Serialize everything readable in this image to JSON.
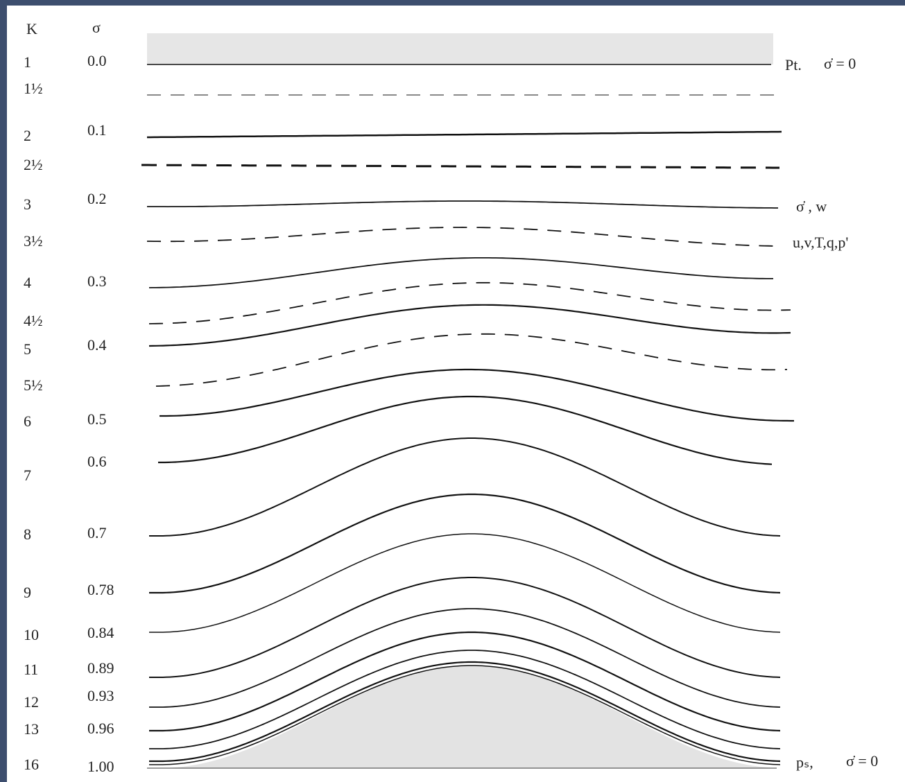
{
  "header": {
    "k": "K",
    "sigma": "σ"
  },
  "k_labels": [
    "1",
    "1½",
    "2",
    "2½",
    "3",
    "3½",
    "4",
    "4½",
    "5",
    "5½",
    "6",
    "7",
    "8",
    "9",
    "10",
    "11",
    "12",
    "13",
    "16"
  ],
  "sigma_labels": [
    "0.0",
    "0.1",
    "0.2",
    "0.3",
    "0.4",
    "0.5",
    "0.6",
    "0.7",
    "0.78",
    "0.84",
    "0.89",
    "0.93",
    "0.96",
    "1.00"
  ],
  "annotations": {
    "top": "Pt.",
    "top_eq": "σ̇ = 0",
    "mid": "σ̇ , w",
    "mid2": "u,v,T,q,p'",
    "bottom": "pₛ,",
    "bottom_eq": "σ̇ = 0"
  }
}
